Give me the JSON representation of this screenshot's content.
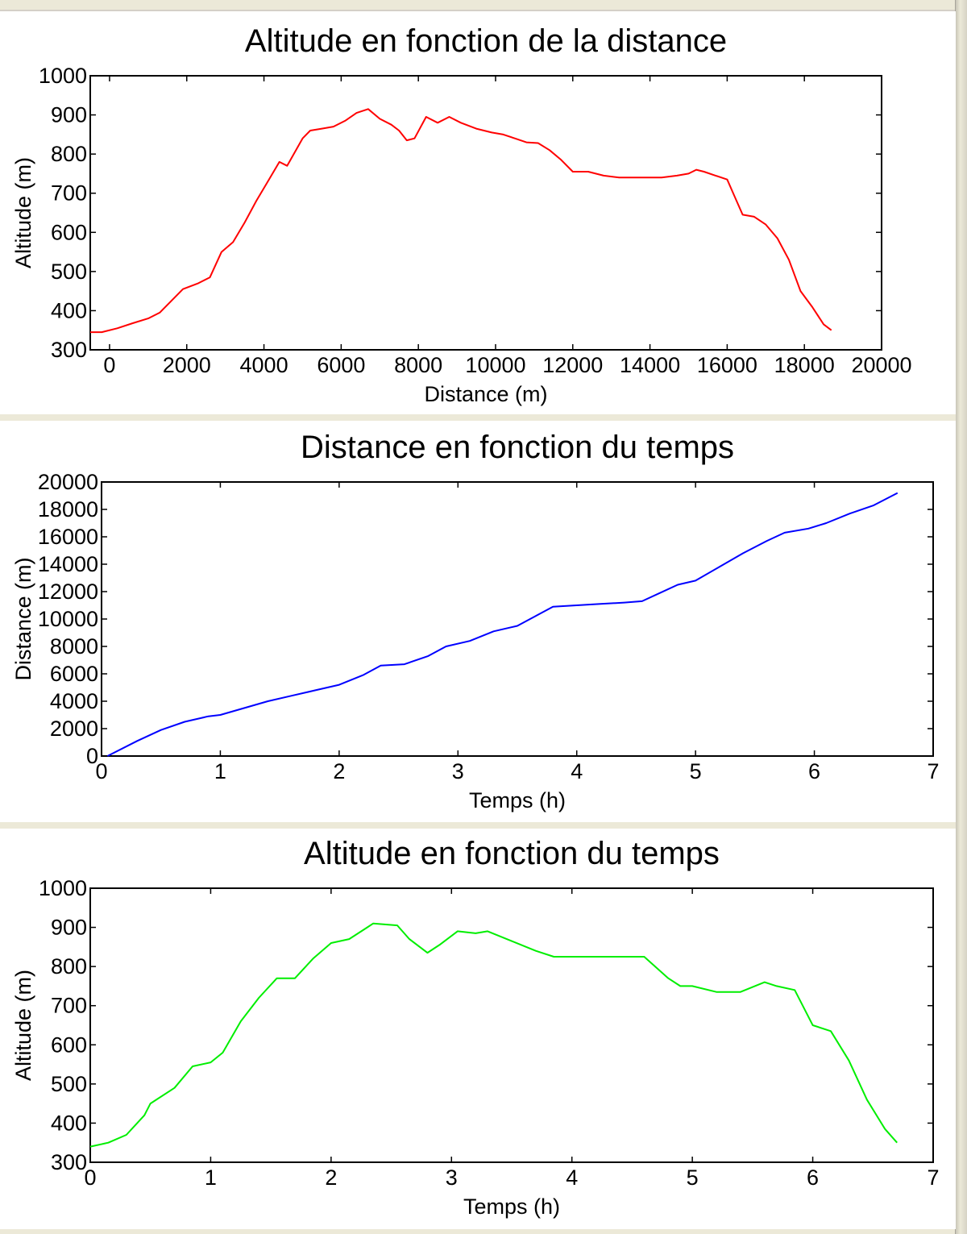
{
  "chart_data": [
    {
      "type": "line",
      "title": "Altitude en fonction de la distance",
      "xlabel": "Distance (m)",
      "ylabel": "Altitude (m)",
      "xlim": [
        -500,
        20000
      ],
      "ylim": [
        300,
        1000
      ],
      "xticks": [
        0,
        2000,
        4000,
        6000,
        8000,
        10000,
        12000,
        14000,
        16000,
        18000,
        20000
      ],
      "yticks": [
        300,
        400,
        500,
        600,
        700,
        800,
        900,
        1000
      ],
      "color": "#ff0000",
      "series": [
        {
          "x": [
            -500,
            -200,
            200,
            600,
            1000,
            1300,
            1600,
            1900,
            2300,
            2600,
            2900,
            3200,
            3500,
            3800,
            4100,
            4400,
            4600,
            4800,
            5000,
            5200,
            5500,
            5800,
            6100,
            6400,
            6700,
            7000,
            7300,
            7500,
            7700,
            7900,
            8200,
            8500,
            8800,
            9100,
            9500,
            9900,
            10200,
            10500,
            10800,
            11100,
            11400,
            11700,
            12000,
            12400,
            12800,
            13200,
            13600,
            14000,
            14300,
            14700,
            15000,
            15200,
            15400,
            15700,
            16000,
            16200,
            16400,
            16700,
            17000,
            17300,
            17600,
            17900,
            18200,
            18500,
            18700
          ],
          "y": [
            345,
            345,
            355,
            368,
            380,
            395,
            425,
            455,
            470,
            485,
            550,
            575,
            625,
            680,
            730,
            780,
            770,
            805,
            840,
            860,
            865,
            870,
            885,
            905,
            915,
            890,
            875,
            860,
            835,
            840,
            895,
            880,
            895,
            880,
            865,
            855,
            850,
            840,
            830,
            828,
            810,
            785,
            755,
            755,
            745,
            740,
            740,
            740,
            740,
            745,
            750,
            760,
            755,
            745,
            735,
            690,
            645,
            640,
            620,
            585,
            530,
            450,
            410,
            365,
            350
          ]
        }
      ]
    },
    {
      "type": "line",
      "title": "Distance en fonction du temps",
      "xlabel": "Temps (h)",
      "ylabel": "Distance (m)",
      "xlim": [
        0,
        7
      ],
      "ylim": [
        0,
        20000
      ],
      "xticks": [
        0,
        1,
        2,
        3,
        4,
        5,
        6,
        7
      ],
      "yticks": [
        0,
        2000,
        4000,
        6000,
        8000,
        10000,
        12000,
        14000,
        16000,
        18000,
        20000
      ],
      "color": "#0000ff",
      "series": [
        {
          "x": [
            0.05,
            0.3,
            0.5,
            0.7,
            0.9,
            1.0,
            1.2,
            1.4,
            1.6,
            1.8,
            2.0,
            2.2,
            2.35,
            2.55,
            2.75,
            2.9,
            3.1,
            3.3,
            3.5,
            3.65,
            3.8,
            4.0,
            4.2,
            4.4,
            4.55,
            4.7,
            4.85,
            5.0,
            5.2,
            5.4,
            5.6,
            5.75,
            5.95,
            6.1,
            6.3,
            6.5,
            6.7
          ],
          "y": [
            0,
            1100,
            1900,
            2500,
            2900,
            3000,
            3500,
            4000,
            4400,
            4800,
            5200,
            5900,
            6600,
            6700,
            7300,
            8000,
            8400,
            9100,
            9500,
            10200,
            10900,
            11000,
            11100,
            11200,
            11300,
            11900,
            12500,
            12800,
            13800,
            14800,
            15700,
            16300,
            16600,
            17000,
            17700,
            18300,
            19200
          ]
        }
      ]
    },
    {
      "type": "line",
      "title": "Altitude en fonction du temps",
      "xlabel": "Temps (h)",
      "ylabel": "Altitude (m)",
      "xlim": [
        0,
        7
      ],
      "ylim": [
        300,
        1000
      ],
      "xticks": [
        0,
        1,
        2,
        3,
        4,
        5,
        6,
        7
      ],
      "yticks": [
        300,
        400,
        500,
        600,
        700,
        800,
        900,
        1000
      ],
      "color": "#00ee00",
      "series": [
        {
          "x": [
            0.0,
            0.15,
            0.3,
            0.45,
            0.5,
            0.7,
            0.85,
            1.0,
            1.1,
            1.25,
            1.4,
            1.55,
            1.6,
            1.7,
            1.85,
            2.0,
            2.15,
            2.3,
            2.35,
            2.55,
            2.65,
            2.8,
            2.9,
            3.05,
            3.2,
            3.3,
            3.5,
            3.7,
            3.85,
            4.0,
            4.3,
            4.6,
            4.8,
            4.9,
            5.0,
            5.2,
            5.4,
            5.6,
            5.7,
            5.85,
            6.0,
            6.15,
            6.3,
            6.45,
            6.6,
            6.7
          ],
          "y": [
            340,
            350,
            370,
            420,
            450,
            490,
            545,
            555,
            580,
            660,
            720,
            770,
            770,
            770,
            820,
            860,
            870,
            900,
            910,
            905,
            870,
            835,
            855,
            890,
            885,
            890,
            865,
            840,
            825,
            825,
            825,
            825,
            770,
            750,
            750,
            735,
            735,
            760,
            750,
            740,
            650,
            635,
            560,
            460,
            385,
            350
          ]
        }
      ]
    }
  ]
}
